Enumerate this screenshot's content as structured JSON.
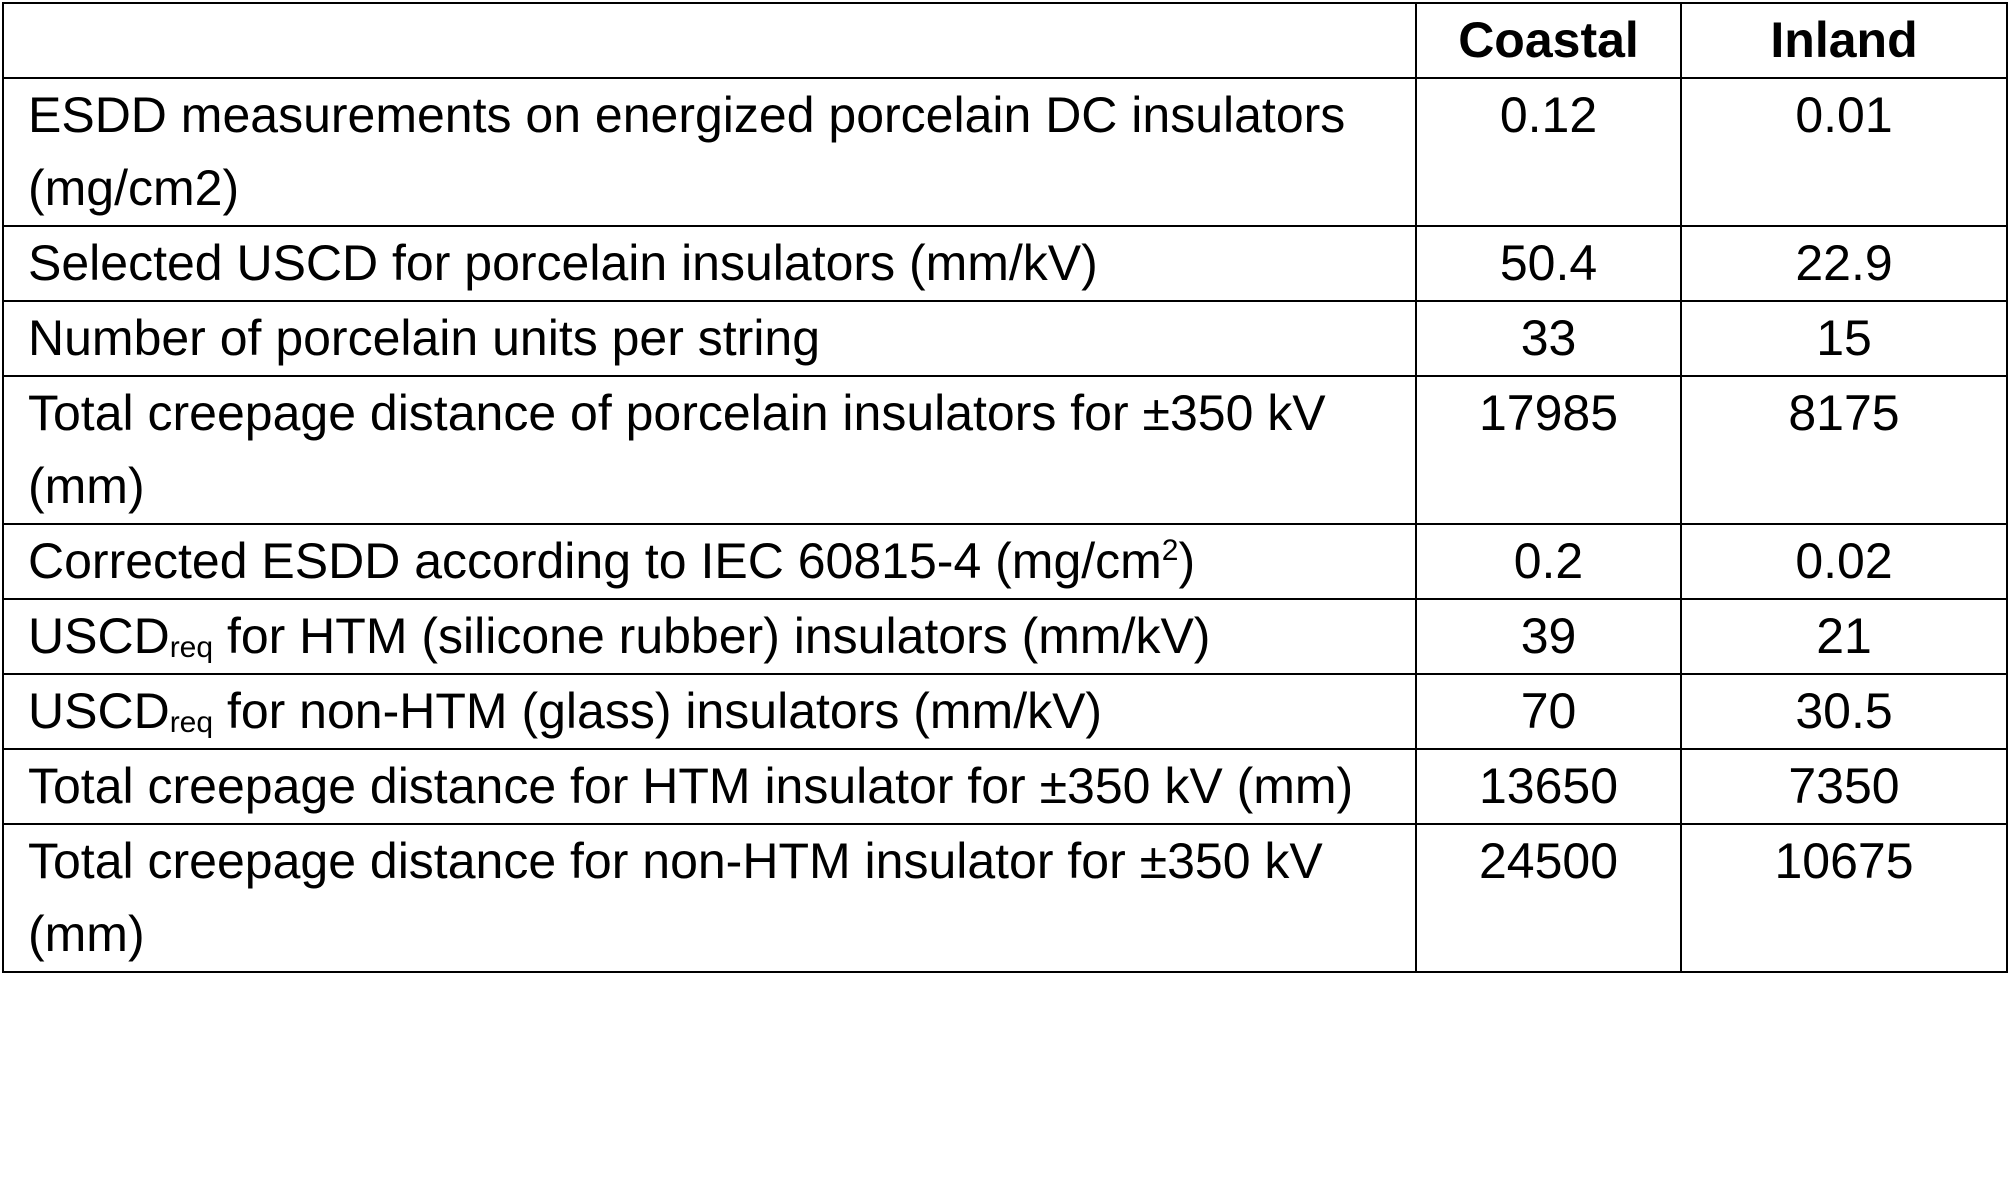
{
  "table": {
    "columns": [
      "Coastal",
      "Inland"
    ],
    "rows": [
      {
        "label": [
          {
            "text": "ESDD measurements on energized porcelain DC insulators (mg/cm2)"
          }
        ],
        "values": [
          0.12,
          0.01
        ]
      },
      {
        "label": [
          {
            "text": "Selected USCD for porcelain insulators (mm/kV)"
          }
        ],
        "values": [
          50.4,
          22.9
        ]
      },
      {
        "label": [
          {
            "text": "Number of porcelain units per string"
          }
        ],
        "values": [
          33,
          15
        ]
      },
      {
        "label": [
          {
            "text": "Total creepage distance of porcelain insulators for ±350 kV (mm)"
          }
        ],
        "values": [
          17985,
          8175
        ]
      },
      {
        "label": [
          {
            "text": "Corrected ESDD according to IEC 60815-4 (mg/cm"
          },
          {
            "sup": "2"
          },
          {
            "text": ")"
          }
        ],
        "values": [
          0.2,
          0.02
        ]
      },
      {
        "label": [
          {
            "text": "USCD"
          },
          {
            "sub": "req"
          },
          {
            "text": " for HTM (silicone rubber) insulators (mm/kV)"
          }
        ],
        "values": [
          39,
          21
        ]
      },
      {
        "label": [
          {
            "text": "USCD"
          },
          {
            "sub": "req"
          },
          {
            "text": " for non-HTM (glass) insulators (mm/kV)"
          }
        ],
        "values": [
          70,
          30.5
        ]
      },
      {
        "label": [
          {
            "text": "Total creepage distance for HTM insulator for ±350 kV (mm)"
          }
        ],
        "values": [
          13650,
          7350
        ]
      },
      {
        "label": [
          {
            "text": "Total creepage distance for non-HTM insulator for ±350 kV (mm)"
          }
        ],
        "values": [
          24500,
          10675
        ]
      }
    ]
  }
}
